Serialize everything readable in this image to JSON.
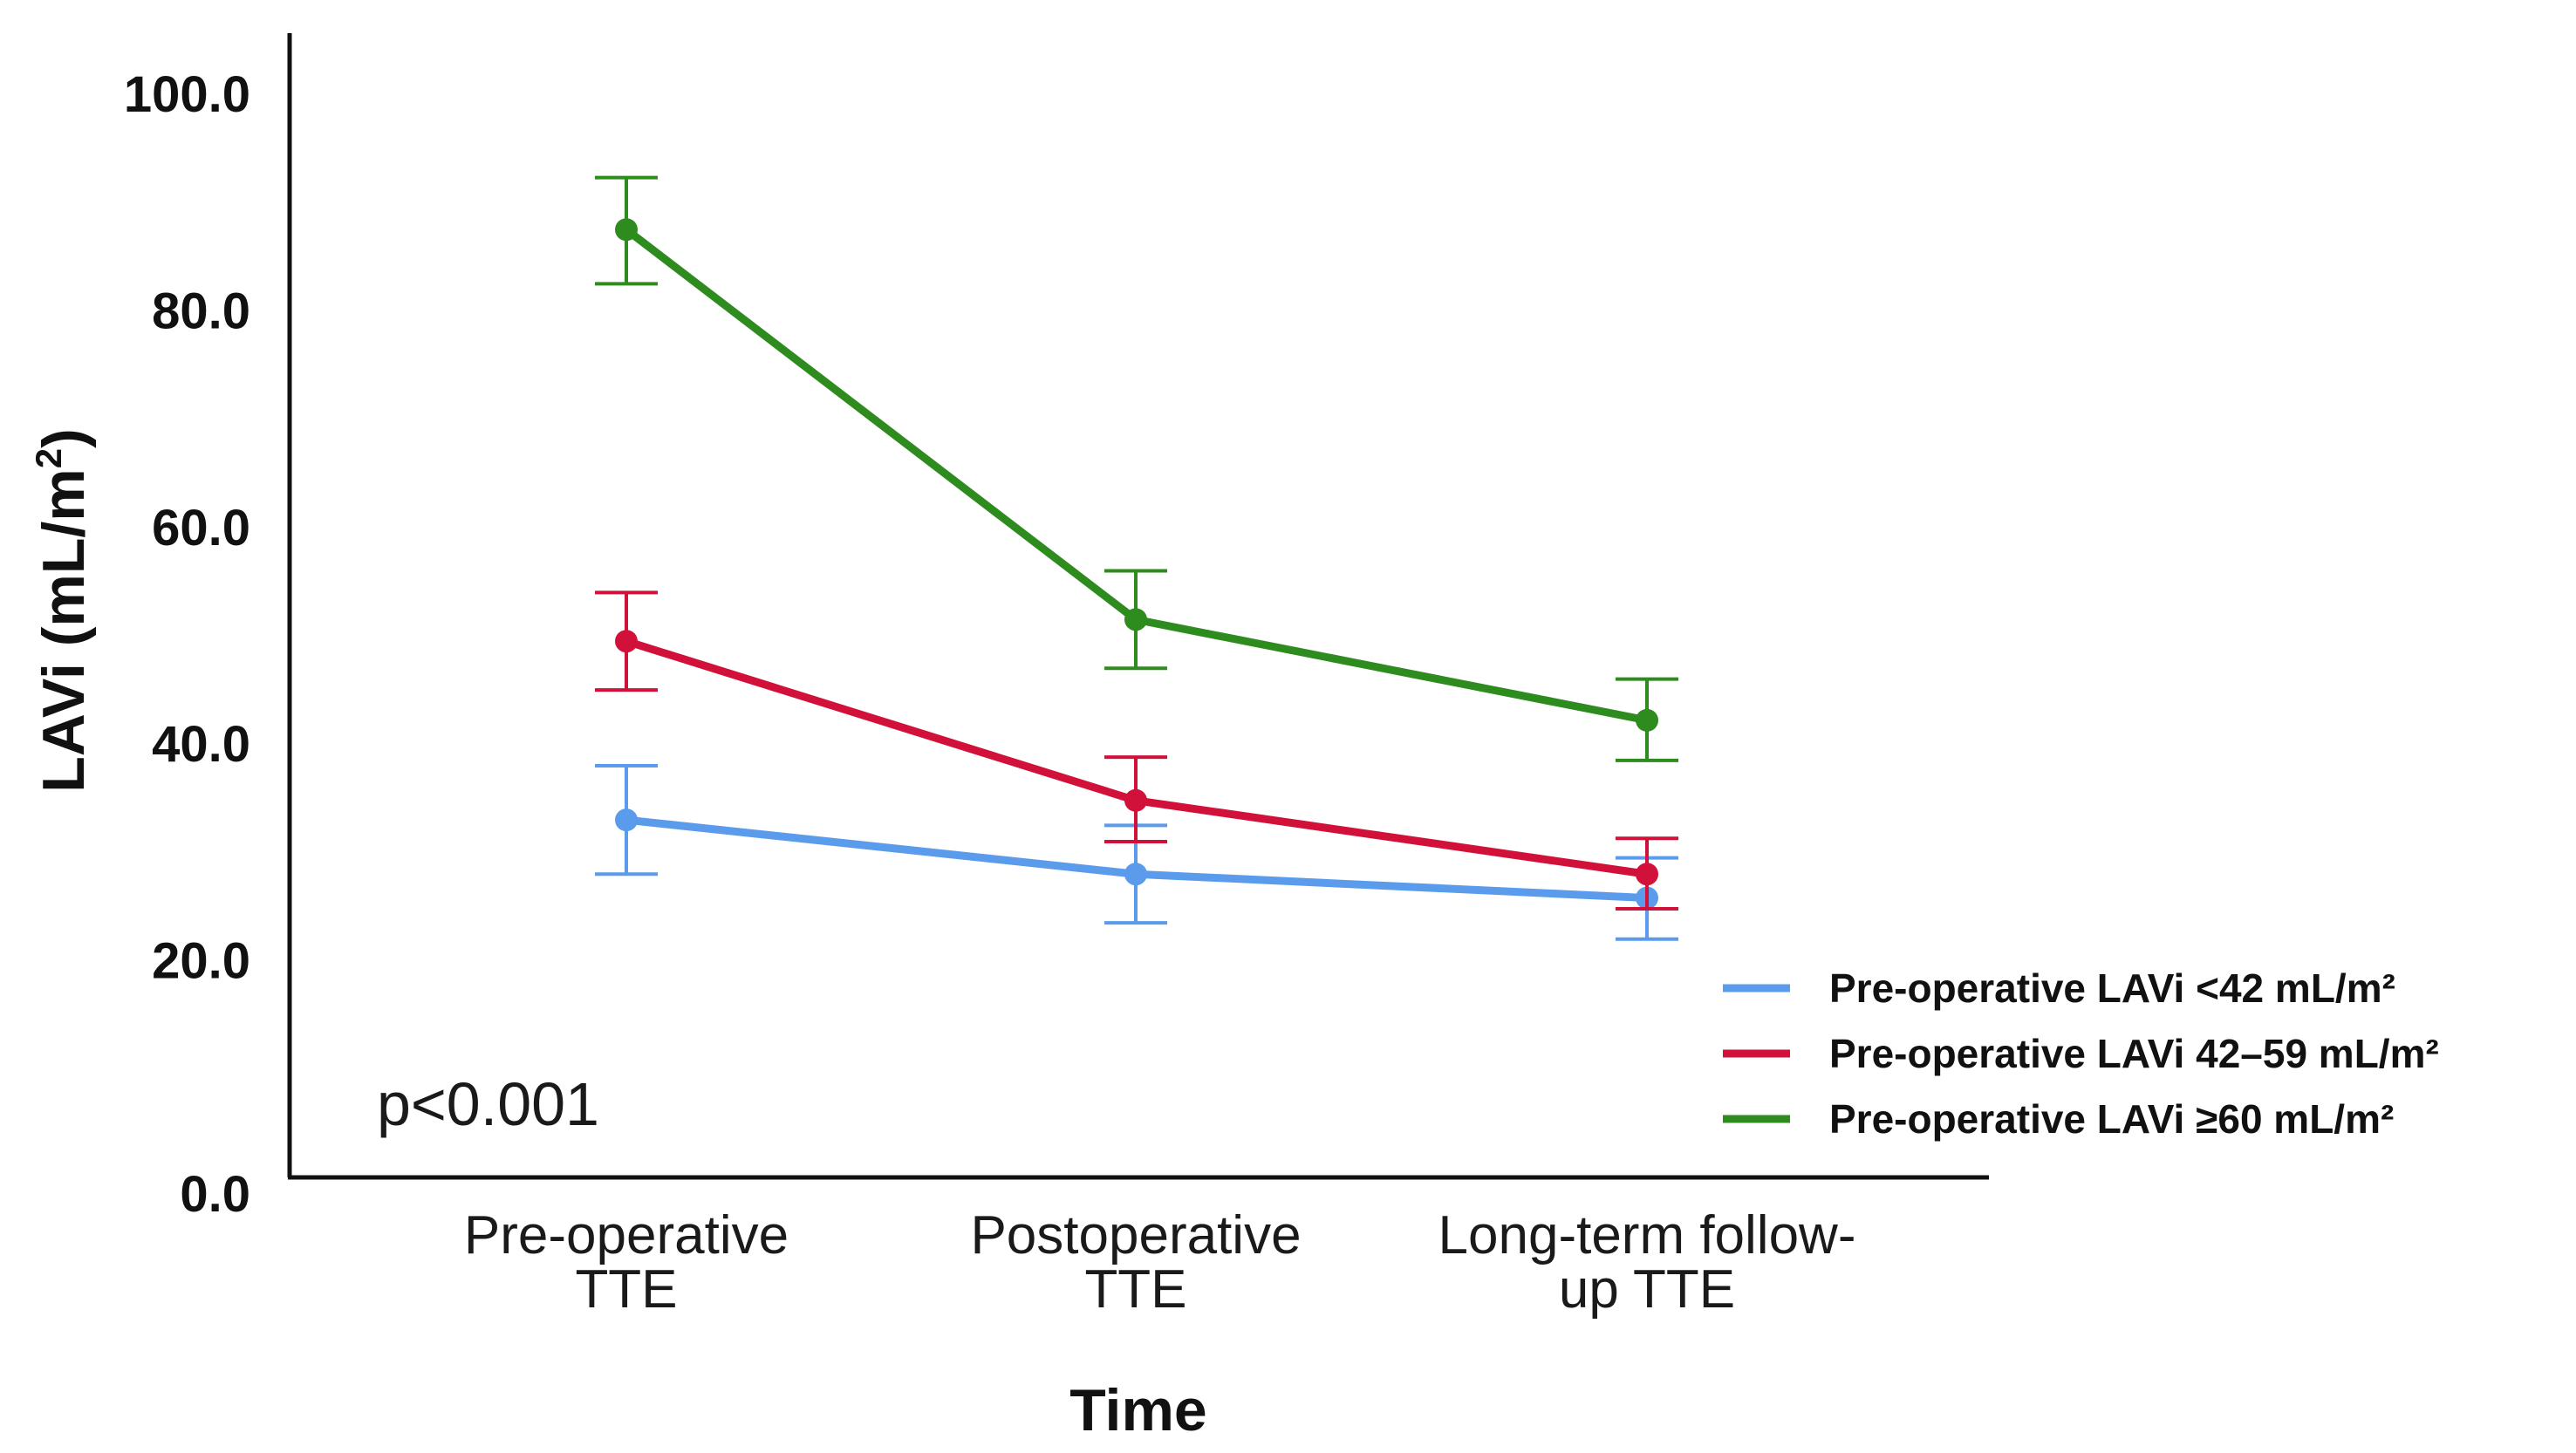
{
  "chart_data": {
    "type": "line",
    "xlabel": "Time",
    "ylabel": "LAVi (mL/m2)",
    "ylabel_main": "LAVi (mL/m",
    "ylabel_sup": "2",
    "ylabel_close": ")",
    "ylim": [
      0,
      100
    ],
    "yticks": [
      "0.0",
      "20.0",
      "40.0",
      "60.0",
      "80.0",
      "100.0"
    ],
    "categories": [
      [
        "Pre-operative",
        "TTE"
      ],
      [
        "Postoperative",
        "TTE"
      ],
      [
        "Long-term follow-",
        "up TTE"
      ]
    ],
    "annotation": "p<0.001",
    "grid": false,
    "legend_position": "bottom-right",
    "series": [
      {
        "name": "Pre-operative LAVi <42 mL/m²",
        "color": "#5b9bec",
        "values": [
          33.0,
          28.0,
          25.8
        ],
        "err_low": [
          28.0,
          23.5,
          22.0
        ],
        "err_high": [
          38.0,
          32.5,
          29.5
        ]
      },
      {
        "name": "Pre-operative LAVi 42–59 mL/m²",
        "color": "#d2113a",
        "values": [
          49.5,
          34.8,
          28.0
        ],
        "err_low": [
          45.0,
          31.0,
          24.8
        ],
        "err_high": [
          54.0,
          38.8,
          31.3
        ]
      },
      {
        "name": "Pre-operative LAVi ≥60 mL/m²",
        "color": "#2e8b1e",
        "values": [
          87.5,
          51.5,
          42.2
        ],
        "err_low": [
          82.5,
          47.0,
          38.5
        ],
        "err_high": [
          92.3,
          56.0,
          46.0
        ]
      }
    ]
  }
}
